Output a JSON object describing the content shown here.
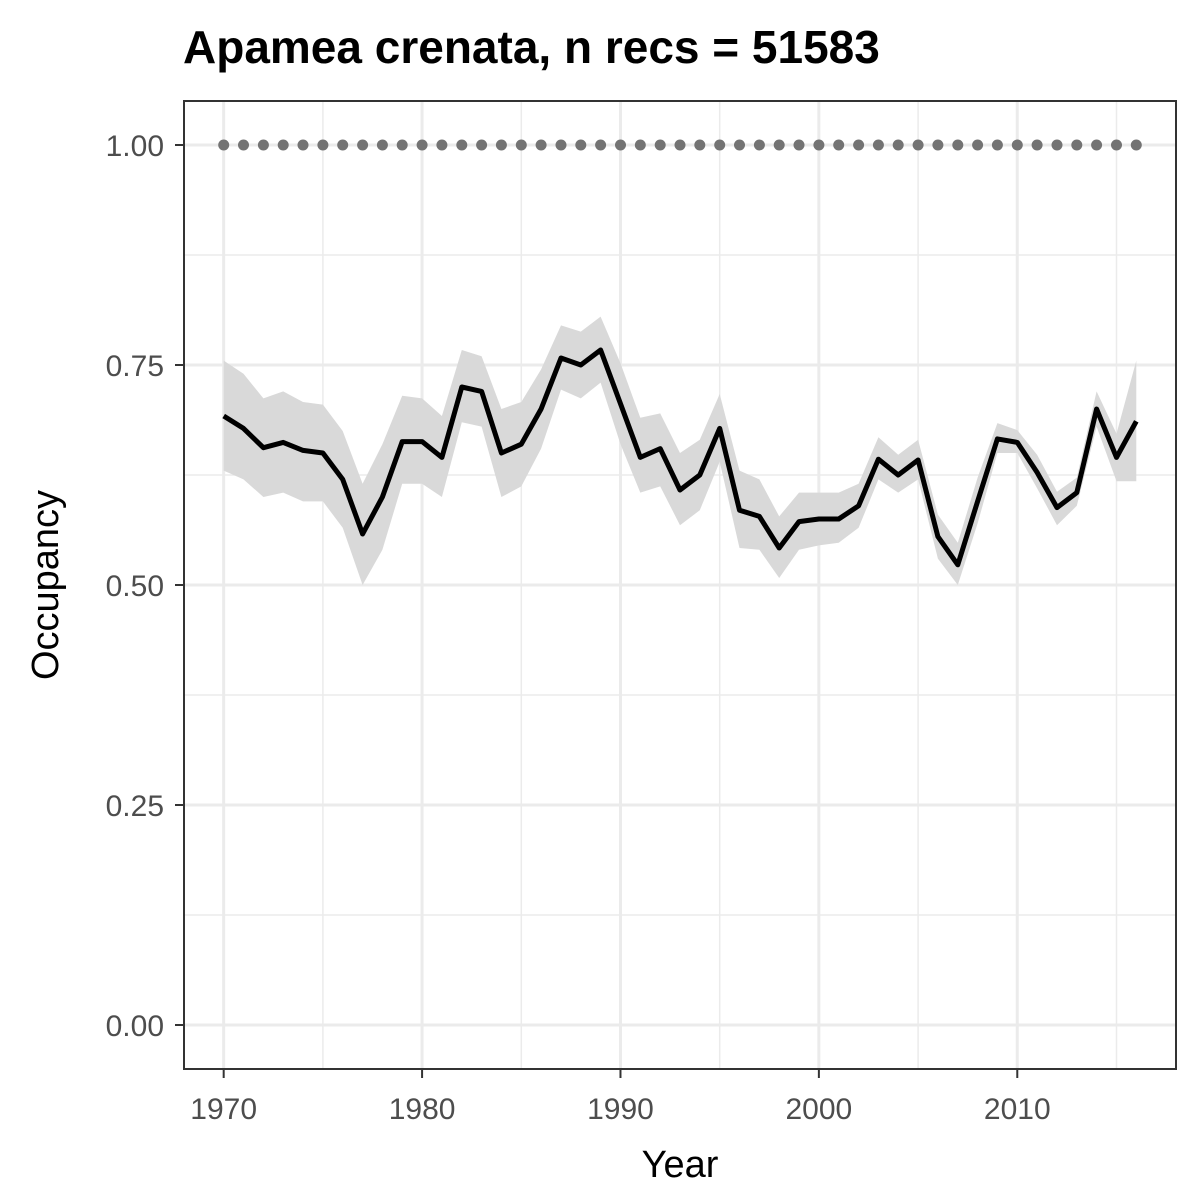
{
  "chart_data": {
    "type": "line",
    "title": "Apamea crenata, n recs = 51583",
    "xlabel": "Year",
    "ylabel": "Occupancy",
    "xlim": [
      1968,
      2018
    ],
    "ylim": [
      -0.05,
      1.05
    ],
    "x_ticks": [
      1970,
      1980,
      1990,
      2000,
      2010
    ],
    "x_tick_labels": [
      "1970",
      "1980",
      "1990",
      "2000",
      "2010"
    ],
    "y_ticks": [
      0,
      0.25,
      0.5,
      0.75,
      1.0
    ],
    "y_tick_labels": [
      "0.00",
      "0.25",
      "0.50",
      "0.75",
      "1.00"
    ],
    "grid": true,
    "colors": {
      "line": "#000000",
      "ribbon": "#d9d9d9",
      "points": "#737373",
      "grid": "#ebebeb",
      "panel_border": "#333333"
    },
    "x": [
      1970,
      1971,
      1972,
      1973,
      1974,
      1975,
      1976,
      1977,
      1978,
      1979,
      1980,
      1981,
      1982,
      1983,
      1984,
      1985,
      1986,
      1987,
      1988,
      1989,
      1990,
      1991,
      1992,
      1993,
      1994,
      1995,
      1996,
      1997,
      1998,
      1999,
      2000,
      2001,
      2002,
      2003,
      2004,
      2005,
      2006,
      2007,
      2008,
      2009,
      2010,
      2011,
      2012,
      2013,
      2014,
      2015,
      2016
    ],
    "series": [
      {
        "values": [
          0.692,
          0.678,
          0.656,
          0.662,
          0.653,
          0.65,
          0.62,
          0.558,
          0.6,
          0.663,
          0.663,
          0.645,
          0.725,
          0.72,
          0.65,
          0.66,
          0.7,
          0.758,
          0.75,
          0.767,
          0.706,
          0.645,
          0.655,
          0.608,
          0.625,
          0.678,
          0.585,
          0.578,
          0.542,
          0.572,
          0.575,
          0.575,
          0.59,
          0.643,
          0.625,
          0.642,
          0.555,
          0.523,
          0.595,
          0.666,
          0.662,
          0.628,
          0.588,
          0.605,
          0.7,
          0.645,
          0.686
        ],
        "lower": [
          0.63,
          0.62,
          0.6,
          0.605,
          0.595,
          0.595,
          0.565,
          0.5,
          0.54,
          0.615,
          0.615,
          0.6,
          0.685,
          0.68,
          0.6,
          0.612,
          0.655,
          0.722,
          0.712,
          0.73,
          0.66,
          0.605,
          0.612,
          0.568,
          0.585,
          0.64,
          0.542,
          0.54,
          0.508,
          0.54,
          0.545,
          0.548,
          0.565,
          0.62,
          0.605,
          0.62,
          0.53,
          0.5,
          0.57,
          0.65,
          0.65,
          0.61,
          0.568,
          0.59,
          0.68,
          0.618,
          0.618
        ],
        "upper": [
          0.755,
          0.74,
          0.712,
          0.72,
          0.708,
          0.705,
          0.675,
          0.615,
          0.66,
          0.715,
          0.712,
          0.692,
          0.767,
          0.76,
          0.7,
          0.708,
          0.745,
          0.795,
          0.788,
          0.805,
          0.752,
          0.69,
          0.695,
          0.65,
          0.665,
          0.717,
          0.63,
          0.62,
          0.578,
          0.605,
          0.605,
          0.605,
          0.615,
          0.668,
          0.648,
          0.665,
          0.58,
          0.548,
          0.622,
          0.684,
          0.676,
          0.648,
          0.606,
          0.622,
          0.72,
          0.672,
          0.755
        ]
      },
      {
        "values": [
          1,
          1,
          1,
          1,
          1,
          1,
          1,
          1,
          1,
          1,
          1,
          1,
          1,
          1,
          1,
          1,
          1,
          1,
          1,
          1,
          1,
          1,
          1,
          1,
          1,
          1,
          1,
          1,
          1,
          1,
          1,
          1,
          1,
          1,
          1,
          1,
          1,
          1,
          1,
          1,
          1,
          1,
          1,
          1,
          1,
          1,
          1
        ],
        "style": "points"
      }
    ]
  }
}
